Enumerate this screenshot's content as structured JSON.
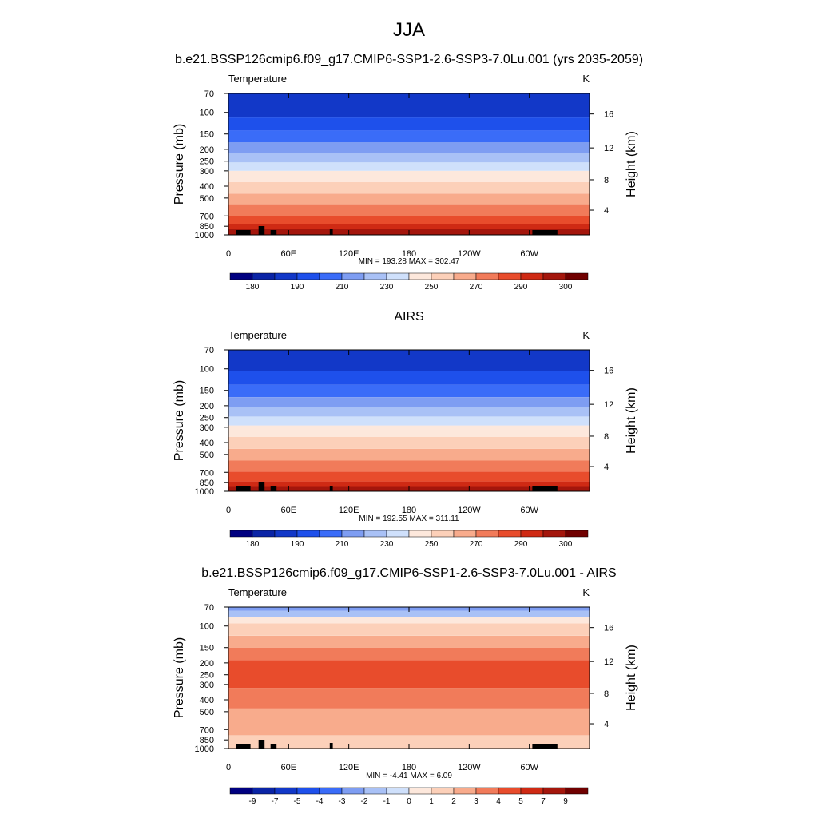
{
  "page": {
    "title": "JJA"
  },
  "colormap": [
    "#000080",
    "#0a24a6",
    "#1238c8",
    "#1e50eb",
    "#3a6cf8",
    "#7e9df2",
    "#a9c1f6",
    "#cfe0fb",
    "#fde8dc",
    "#fcd0b9",
    "#f8ab8c",
    "#f17b5a",
    "#e84c2c",
    "#cf2a14",
    "#a4160c",
    "#700000"
  ],
  "panels": [
    {
      "id": "model",
      "header": "b.e21.BSSP126cmip6.f09_g17.CMIP6-SSP1-2.6-SSP3-7.0Lu.001 (yrs 2035-2059)",
      "left_label": "Temperature",
      "right_label": "K",
      "stats": "MIN = 193.28  MAX = 302.47",
      "colorbar_labels": [
        "180",
        "190",
        "210",
        "230",
        "250",
        "270",
        "290",
        "300"
      ],
      "colorbar_label_slots": [
        1,
        3,
        5,
        7,
        9,
        11,
        13,
        15
      ]
    },
    {
      "id": "obs",
      "header": "AIRS",
      "left_label": "Temperature",
      "right_label": "K",
      "stats": "MIN = 192.55  MAX = 311.11",
      "colorbar_labels": [
        "180",
        "190",
        "210",
        "230",
        "250",
        "270",
        "290",
        "300"
      ],
      "colorbar_label_slots": [
        1,
        3,
        5,
        7,
        9,
        11,
        13,
        15
      ]
    },
    {
      "id": "diff",
      "header": "b.e21.BSSP126cmip6.f09_g17.CMIP6-SSP1-2.6-SSP3-7.0Lu.001 - AIRS",
      "left_label": "Temperature",
      "right_label": "K",
      "stats": "MIN =  -4.41  MAX =   6.09",
      "colorbar_labels": [
        "-9",
        "-7",
        "-5",
        "-4",
        "-3",
        "-2",
        "-1",
        "0",
        "1",
        "2",
        "3",
        "4",
        "5",
        "7",
        "9"
      ],
      "colorbar_label_slots": [
        1,
        2,
        3,
        4,
        5,
        6,
        7,
        8,
        9,
        10,
        11,
        12,
        13,
        14,
        15
      ]
    }
  ],
  "chart_data": [
    {
      "type": "heatmap",
      "title": "Temperature",
      "units": "K",
      "ylabel": "Pressure (mb)",
      "y2label": "Height (km)",
      "x_ticks": [
        "0",
        "60E",
        "120E",
        "180",
        "120W",
        "60W"
      ],
      "x_tick_values": [
        0,
        60,
        120,
        180,
        240,
        300
      ],
      "xlim": [
        0,
        360
      ],
      "y_ticks": [
        "70",
        "100",
        "150",
        "200",
        "250",
        "300",
        "400",
        "500",
        "700",
        "850",
        "1000"
      ],
      "y_tick_values": [
        70,
        100,
        150,
        200,
        250,
        300,
        400,
        500,
        700,
        850,
        1000
      ],
      "ylim": [
        1000,
        70
      ],
      "y2_ticks": [
        "4",
        "8",
        "12",
        "16"
      ],
      "y2_tick_values": [
        4,
        8,
        12,
        16
      ],
      "scale": "log-pressure",
      "levels_bottom_to_top": [
        {
          "p_top": 1000,
          "class": 14
        },
        {
          "p_top": 900,
          "class": 13
        },
        {
          "p_top": 820,
          "class": 12
        },
        {
          "p_top": 700,
          "class": 11
        },
        {
          "p_top": 570,
          "class": 10
        },
        {
          "p_top": 460,
          "class": 9
        },
        {
          "p_top": 370,
          "class": 8
        },
        {
          "p_top": 300,
          "class": 7
        },
        {
          "p_top": 255,
          "class": 6
        },
        {
          "p_top": 215,
          "class": 5
        },
        {
          "p_top": 175,
          "class": 4
        },
        {
          "p_top": 140,
          "class": 3
        },
        {
          "p_top": 110,
          "class": 2
        },
        {
          "p_top": 70,
          "class": 2
        }
      ],
      "min": 193.28,
      "max": 302.47
    },
    {
      "type": "heatmap",
      "title": "Temperature",
      "units": "K",
      "ylabel": "Pressure (mb)",
      "y2label": "Height (km)",
      "x_ticks": [
        "0",
        "60E",
        "120E",
        "180",
        "120W",
        "60W"
      ],
      "x_tick_values": [
        0,
        60,
        120,
        180,
        240,
        300
      ],
      "xlim": [
        0,
        360
      ],
      "y_ticks": [
        "70",
        "100",
        "150",
        "200",
        "250",
        "300",
        "400",
        "500",
        "700",
        "850",
        "1000"
      ],
      "y_tick_values": [
        70,
        100,
        150,
        200,
        250,
        300,
        400,
        500,
        700,
        850,
        1000
      ],
      "ylim": [
        1000,
        70
      ],
      "y2_ticks": [
        "4",
        "8",
        "12",
        "16"
      ],
      "y2_tick_values": [
        4,
        8,
        12,
        16
      ],
      "scale": "log-pressure",
      "levels_bottom_to_top": [
        {
          "p_top": 1000,
          "class": 14
        },
        {
          "p_top": 920,
          "class": 13
        },
        {
          "p_top": 830,
          "class": 12
        },
        {
          "p_top": 690,
          "class": 11
        },
        {
          "p_top": 560,
          "class": 10
        },
        {
          "p_top": 450,
          "class": 9
        },
        {
          "p_top": 360,
          "class": 8
        },
        {
          "p_top": 290,
          "class": 7
        },
        {
          "p_top": 245,
          "class": 6
        },
        {
          "p_top": 205,
          "class": 5
        },
        {
          "p_top": 170,
          "class": 4
        },
        {
          "p_top": 135,
          "class": 3
        },
        {
          "p_top": 105,
          "class": 2
        },
        {
          "p_top": 70,
          "class": 2
        }
      ],
      "min": 192.55,
      "max": 311.11
    },
    {
      "type": "heatmap",
      "title": "Temperature",
      "units": "K",
      "ylabel": "Pressure (mb)",
      "y2label": "Height (km)",
      "x_ticks": [
        "0",
        "60E",
        "120E",
        "180",
        "120W",
        "60W"
      ],
      "x_tick_values": [
        0,
        60,
        120,
        180,
        240,
        300
      ],
      "xlim": [
        0,
        360
      ],
      "y_ticks": [
        "70",
        "100",
        "150",
        "200",
        "250",
        "300",
        "400",
        "500",
        "700",
        "850",
        "1000"
      ],
      "y_tick_values": [
        70,
        100,
        150,
        200,
        250,
        300,
        400,
        500,
        700,
        850,
        1000
      ],
      "ylim": [
        1000,
        70
      ],
      "y2_ticks": [
        "4",
        "8",
        "12",
        "16"
      ],
      "y2_tick_values": [
        4,
        8,
        12,
        16
      ],
      "scale": "log-pressure",
      "levels_bottom_to_top": [
        {
          "p_top": 1000,
          "class": 9
        },
        {
          "p_top": 780,
          "class": 10
        },
        {
          "p_top": 470,
          "class": 11
        },
        {
          "p_top": 320,
          "class": 12
        },
        {
          "p_top": 190,
          "class": 11
        },
        {
          "p_top": 150,
          "class": 10
        },
        {
          "p_top": 120,
          "class": 9
        },
        {
          "p_top": 95,
          "class": 8
        },
        {
          "p_top": 85,
          "class": 6
        },
        {
          "p_top": 75,
          "class": 5
        },
        {
          "p_top": 70,
          "class": 4
        }
      ],
      "min": -4.41,
      "max": 6.09
    }
  ]
}
